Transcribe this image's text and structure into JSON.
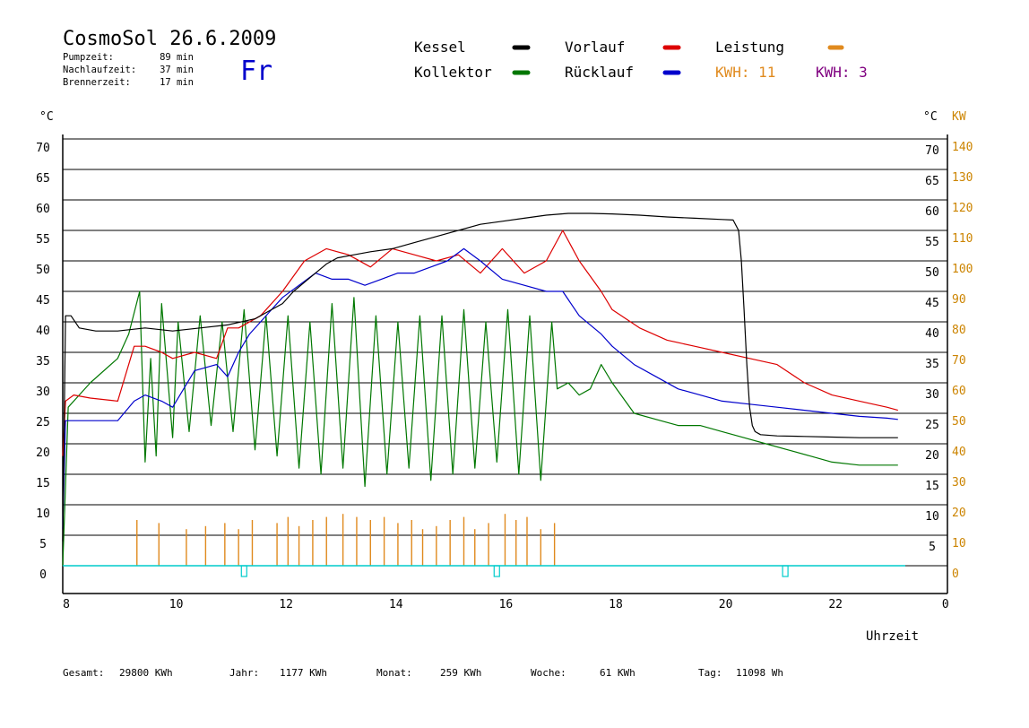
{
  "header": {
    "title": "CosmoSol 26.6.2009",
    "day": "Fr",
    "stats": [
      {
        "label": "Pumpzeit:",
        "value": "89 min"
      },
      {
        "label": "Nachlaufzeit:",
        "value": "37 min"
      },
      {
        "label": "Brennerzeit:",
        "value": "17 min"
      }
    ]
  },
  "legend": {
    "kessel": "Kessel",
    "kollektor": "Kollektor",
    "vorlauf": "Vorlauf",
    "ruecklauf": "Rücklauf",
    "leistung": "Leistung",
    "kwh1": "KWH: 11",
    "kwh2": "KWH: 3"
  },
  "footer": [
    {
      "label": "Gesamt:",
      "value": "29800 KWh"
    },
    {
      "label": "Jahr:",
      "value": "1177 KWh"
    },
    {
      "label": "Monat:",
      "value": "259 KWh"
    },
    {
      "label": "Woche:",
      "value": "61 KWh"
    },
    {
      "label": "Tag:",
      "value": "11098 Wh"
    }
  ],
  "chart_data": {
    "type": "line",
    "xlabel": "Uhrzeit",
    "ylabel_left": "°C",
    "ylabel_right_temp": "°C",
    "ylabel_right_power": "KW",
    "xlim": [
      8,
      24
    ],
    "ylim": [
      0,
      70
    ],
    "x_ticks": [
      "8",
      "10",
      "12",
      "14",
      "16",
      "18",
      "20",
      "22",
      "0"
    ],
    "y_ticks_left": [
      "0",
      "5",
      "10",
      "15",
      "20",
      "25",
      "30",
      "35",
      "40",
      "45",
      "50",
      "55",
      "60",
      "65",
      "70"
    ],
    "y_ticks_right_temp": [
      "5",
      "10",
      "15",
      "20",
      "25",
      "30",
      "35",
      "40",
      "45",
      "50",
      "55",
      "60",
      "65",
      "70"
    ],
    "y_ticks_right_power": [
      "0",
      "10",
      "20",
      "30",
      "40",
      "50",
      "60",
      "70",
      "80",
      "90",
      "100",
      "110",
      "120",
      "130",
      "140"
    ],
    "grid": true,
    "colors": {
      "kessel": "#000000",
      "kollektor": "#007700",
      "vorlauf": "#dd0000",
      "ruecklauf": "#0000cc",
      "leistung": "#e08a1e",
      "kwh2": "#800080",
      "pump": "#00cccc",
      "power_axis": "#cc8400"
    },
    "series": [
      {
        "name": "Kessel",
        "x": [
          8.0,
          8.05,
          8.15,
          8.3,
          8.6,
          9.0,
          9.5,
          10.0,
          10.5,
          11.0,
          11.5,
          11.8,
          12.0,
          12.2,
          12.4,
          12.6,
          12.8,
          13.0,
          13.3,
          13.6,
          14.0,
          14.4,
          14.8,
          15.2,
          15.6,
          16.0,
          16.4,
          16.8,
          17.2,
          17.6,
          18.0,
          18.5,
          19.0,
          19.5,
          20.0,
          20.2,
          20.3,
          20.35,
          20.4,
          20.45,
          20.5,
          20.55,
          20.6,
          20.7,
          21.0,
          21.5,
          22.0,
          22.5,
          23.0,
          23.2
        ],
        "y": [
          4,
          41,
          41,
          39,
          38.5,
          38.5,
          39,
          38.5,
          39,
          39.5,
          40.5,
          42,
          43,
          45,
          46.5,
          48,
          49.5,
          50.5,
          51,
          51.5,
          52,
          53,
          54,
          55,
          56,
          56.5,
          57,
          57.5,
          57.8,
          57.8,
          57.7,
          57.5,
          57.2,
          57,
          56.8,
          56.7,
          55,
          50,
          42,
          33,
          26,
          23,
          22,
          21.5,
          21.3,
          21.2,
          21.1,
          21,
          21,
          21
        ]
      },
      {
        "name": "Kollektor",
        "x": [
          8.0,
          8.1,
          8.3,
          8.5,
          9.0,
          9.2,
          9.4,
          9.5,
          9.6,
          9.7,
          9.8,
          10.0,
          10.1,
          10.3,
          10.5,
          10.7,
          10.9,
          11.1,
          11.3,
          11.5,
          11.7,
          11.9,
          12.1,
          12.3,
          12.5,
          12.7,
          12.9,
          13.1,
          13.3,
          13.5,
          13.7,
          13.9,
          14.1,
          14.3,
          14.5,
          14.7,
          14.9,
          15.1,
          15.3,
          15.5,
          15.7,
          15.9,
          16.1,
          16.3,
          16.5,
          16.7,
          16.9,
          17.0,
          17.2,
          17.4,
          17.6,
          17.8,
          18.0,
          18.4,
          18.8,
          19.2,
          19.6,
          20.0,
          20.4,
          20.8,
          21.2,
          21.6,
          22.0,
          22.5,
          23.0,
          23.2
        ],
        "y": [
          0,
          26,
          28,
          30,
          34,
          38,
          45,
          17,
          34,
          18,
          43,
          21,
          40,
          22,
          41,
          23,
          40,
          22,
          42,
          19,
          41,
          18,
          41,
          16,
          40,
          15,
          43,
          16,
          44,
          13,
          41,
          15,
          40,
          16,
          41,
          14,
          41,
          15,
          42,
          16,
          40,
          17,
          42,
          15,
          41,
          14,
          40,
          29,
          30,
          28,
          29,
          33,
          30,
          25,
          24,
          23,
          23,
          22,
          21,
          20,
          19,
          18,
          17,
          16.5,
          16.5,
          16.5
        ]
      },
      {
        "name": "Vorlauf",
        "x": [
          8.0,
          8.05,
          8.2,
          8.5,
          9.0,
          9.3,
          9.5,
          9.8,
          10.0,
          10.4,
          10.8,
          11.0,
          11.2,
          11.6,
          12.0,
          12.4,
          12.8,
          13.2,
          13.6,
          14.0,
          14.4,
          14.8,
          15.2,
          15.6,
          16.0,
          16.4,
          16.8,
          17.1,
          17.4,
          17.8,
          18.0,
          18.5,
          19.0,
          19.5,
          20.0,
          20.5,
          21.0,
          21.5,
          22.0,
          22.5,
          23.0,
          23.2
        ],
        "y": [
          18,
          27,
          28,
          27.5,
          27,
          36,
          36,
          35,
          34,
          35,
          34,
          39,
          39,
          41,
          45,
          50,
          52,
          51,
          49,
          52,
          51,
          50,
          51,
          48,
          52,
          48,
          50,
          55,
          50,
          45,
          42,
          39,
          37,
          36,
          35,
          34,
          33,
          30,
          28,
          27,
          26,
          25.5
        ]
      },
      {
        "name": "Rücklauf",
        "x": [
          8.0,
          8.05,
          8.2,
          8.5,
          9.0,
          9.3,
          9.5,
          9.8,
          10.0,
          10.4,
          10.8,
          11.0,
          11.2,
          11.4,
          11.6,
          11.8,
          12.0,
          12.3,
          12.6,
          12.9,
          13.2,
          13.5,
          13.8,
          14.1,
          14.4,
          14.7,
          15.0,
          15.3,
          15.6,
          16.0,
          16.4,
          16.8,
          17.1,
          17.4,
          17.8,
          18.0,
          18.4,
          18.8,
          19.2,
          19.6,
          20.0,
          20.5,
          21.0,
          21.5,
          22.0,
          22.5,
          23.0,
          23.2
        ],
        "y": [
          6,
          23.8,
          23.8,
          23.8,
          23.8,
          27,
          28,
          27,
          26,
          32,
          33,
          31,
          35,
          38,
          40,
          42,
          44,
          46,
          48,
          47,
          47,
          46,
          47,
          48,
          48,
          49,
          50,
          52,
          50,
          47,
          46,
          45,
          45,
          41,
          38,
          36,
          33,
          31,
          29,
          28,
          27,
          26.5,
          26,
          25.5,
          25,
          24.5,
          24.2,
          24
        ]
      },
      {
        "name": "Leistung",
        "x": [
          9.35,
          9.75,
          10.25,
          10.6,
          10.95,
          11.2,
          11.45,
          11.9,
          12.1,
          12.3,
          12.55,
          12.8,
          13.1,
          13.35,
          13.6,
          13.85,
          14.1,
          14.35,
          14.55,
          14.8,
          15.05,
          15.3,
          15.5,
          15.75,
          16.05,
          16.25,
          16.45,
          16.7,
          16.95
        ],
        "y": [
          7.5,
          7,
          6,
          6.5,
          7,
          6,
          7.5,
          7,
          8,
          6.5,
          7.5,
          8,
          8.5,
          8,
          7.5,
          8,
          7,
          7.5,
          6,
          6.5,
          7.5,
          8,
          6,
          7,
          8.5,
          7.5,
          8,
          6,
          7
        ]
      }
    ],
    "pump_markers_x": [
      11.3,
      15.9,
      21.15
    ]
  }
}
